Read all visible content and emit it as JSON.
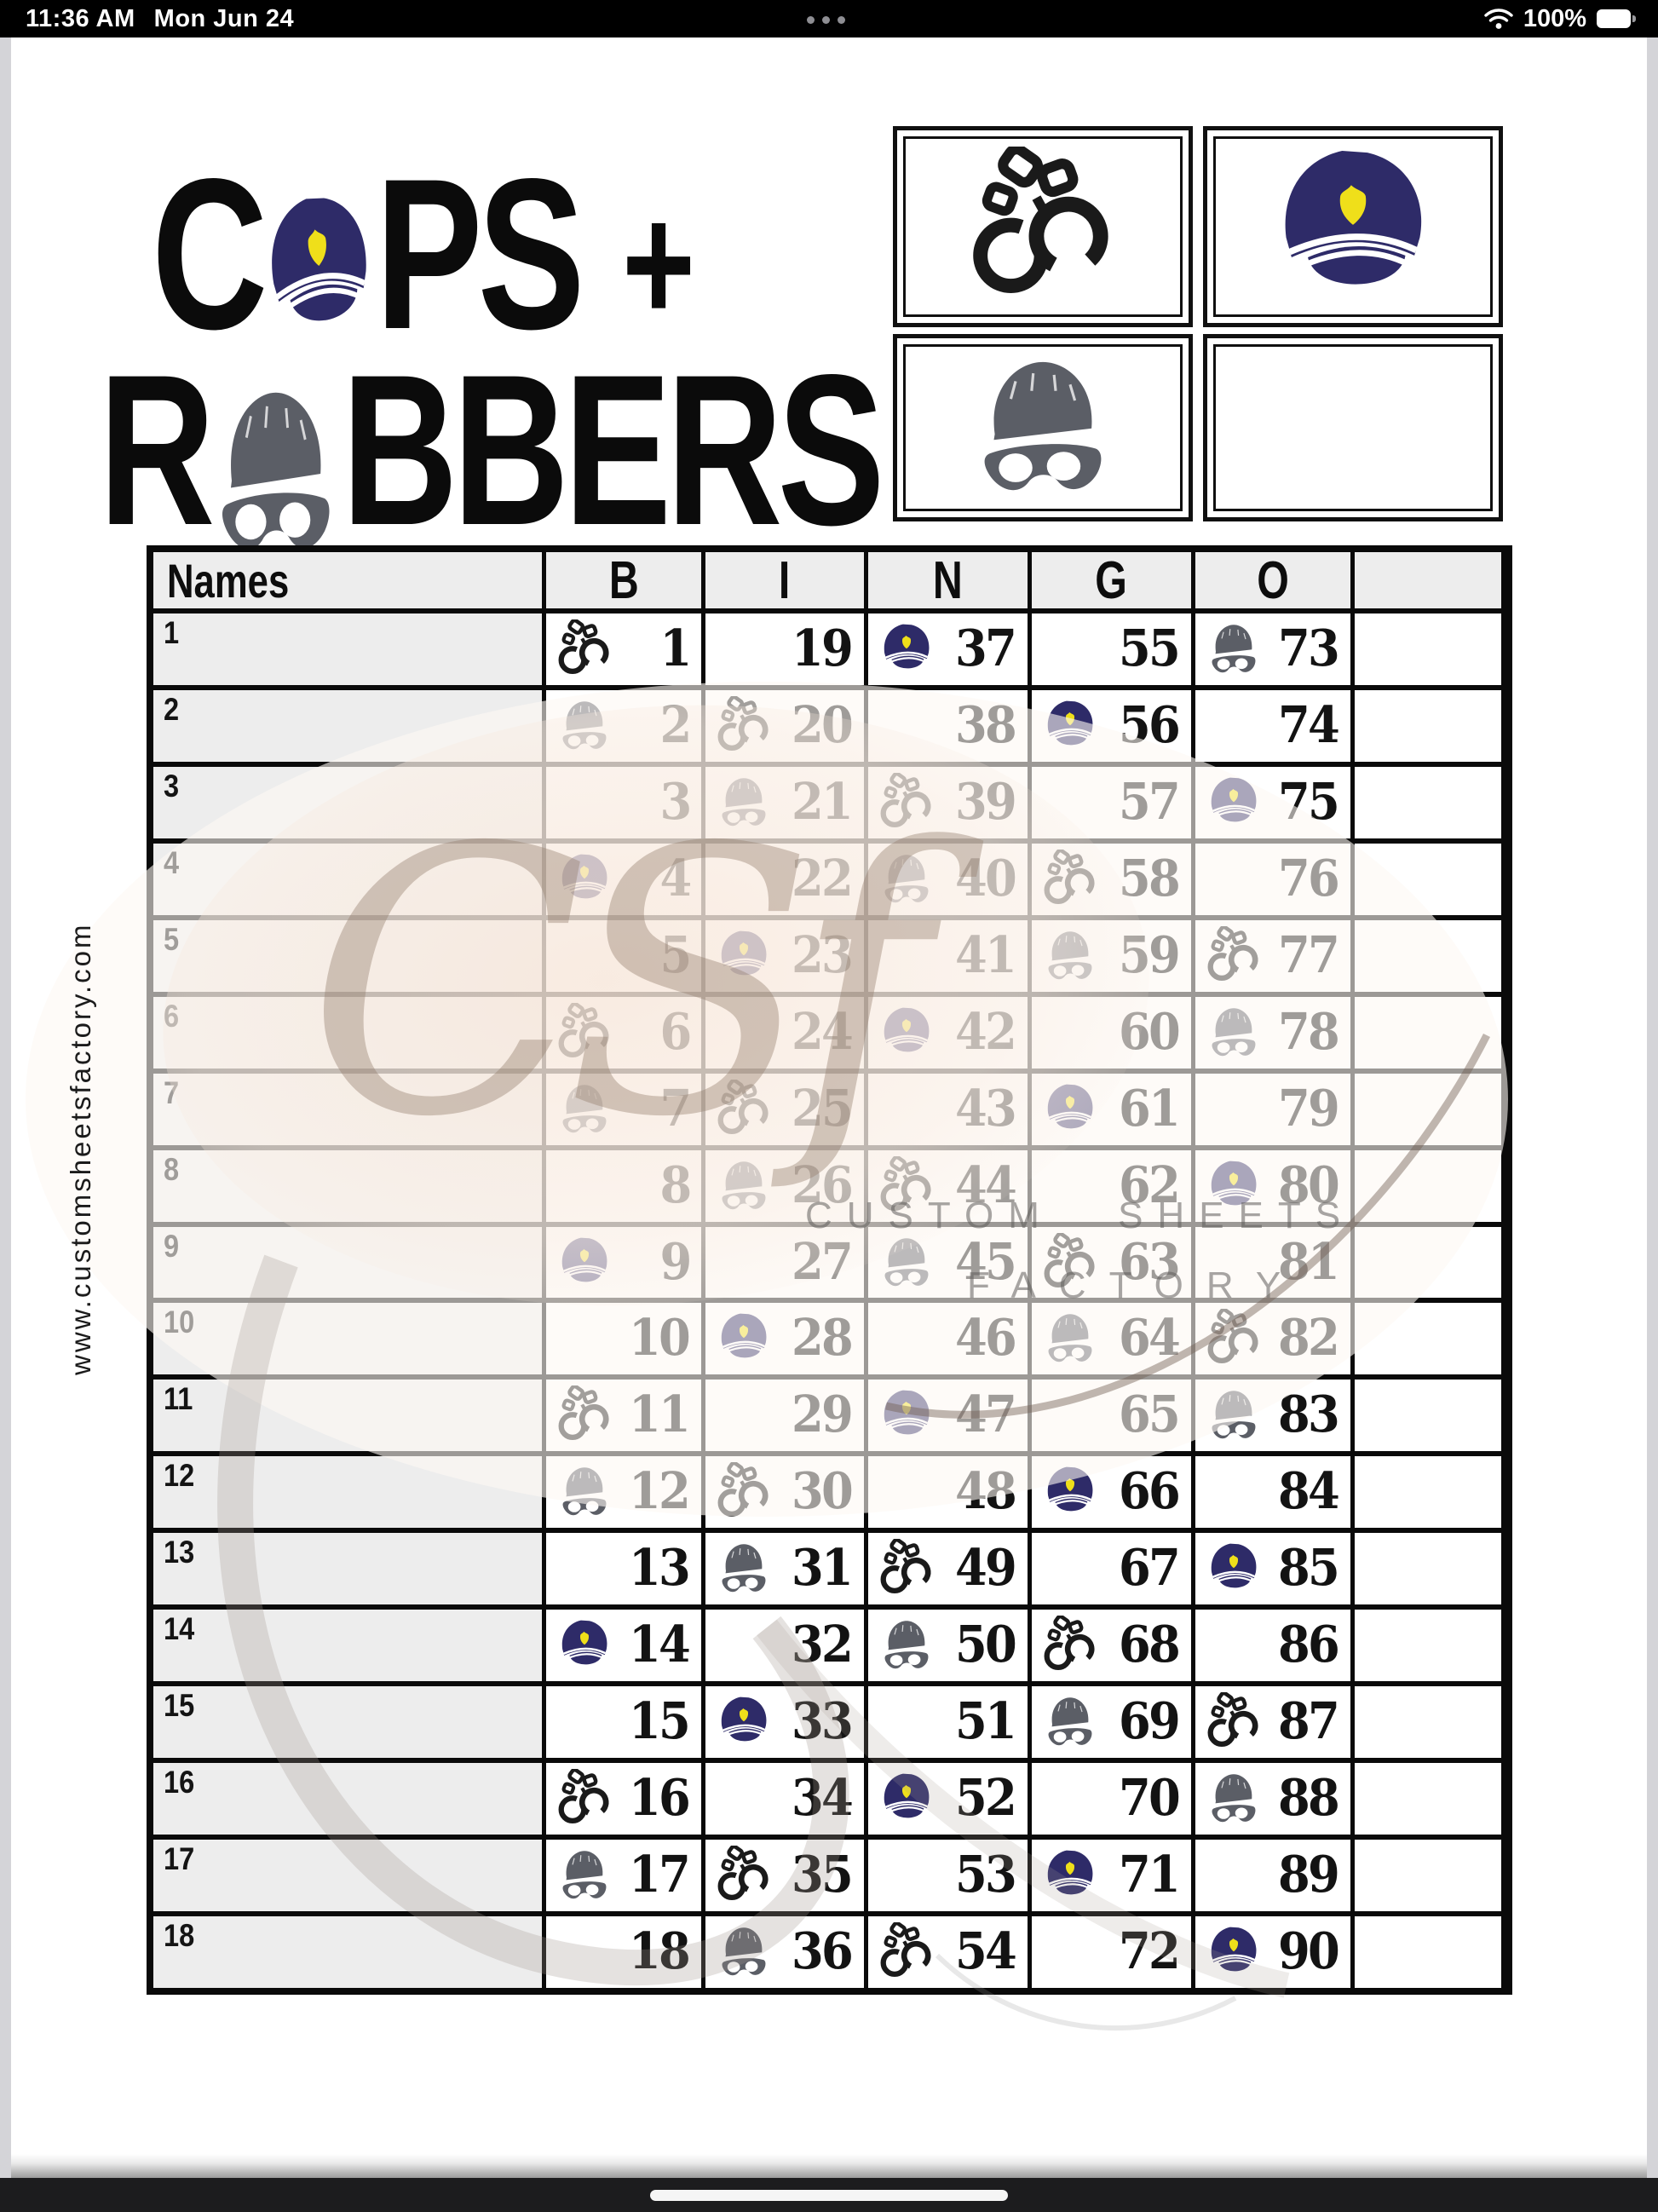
{
  "status_bar": {
    "time": "11:36 AM",
    "date": "Mon Jun 24",
    "battery_percent": "100%"
  },
  "title": {
    "word1_start": "C",
    "word1_end": "PS",
    "plus": "+",
    "word2_start": "R",
    "word2_end": "BBERS"
  },
  "legend": {
    "boxes": [
      {
        "icon": "handcuffs"
      },
      {
        "icon": "police-hat"
      },
      {
        "icon": "robber"
      },
      {
        "icon": "empty"
      }
    ]
  },
  "watermark": {
    "side_url": "www.customsheetsfactory.com",
    "script_text": "CSf",
    "label_line1": "CUSTOM SHEETS",
    "label_line2": "FACTORY"
  },
  "table": {
    "name_header": "Names",
    "letters": [
      "B",
      "I",
      "N",
      "G",
      "O"
    ],
    "rows": [
      {
        "label": "1",
        "cells": [
          {
            "n": 1,
            "icon": "handcuffs"
          },
          {
            "n": 19,
            "icon": null
          },
          {
            "n": 37,
            "icon": "police-hat"
          },
          {
            "n": 55,
            "icon": null
          },
          {
            "n": 73,
            "icon": "robber"
          }
        ]
      },
      {
        "label": "2",
        "cells": [
          {
            "n": 2,
            "icon": "robber"
          },
          {
            "n": 20,
            "icon": "handcuffs"
          },
          {
            "n": 38,
            "icon": null
          },
          {
            "n": 56,
            "icon": "police-hat"
          },
          {
            "n": 74,
            "icon": null
          }
        ]
      },
      {
        "label": "3",
        "cells": [
          {
            "n": 3,
            "icon": null
          },
          {
            "n": 21,
            "icon": "robber"
          },
          {
            "n": 39,
            "icon": "handcuffs"
          },
          {
            "n": 57,
            "icon": null
          },
          {
            "n": 75,
            "icon": "police-hat"
          }
        ]
      },
      {
        "label": "4",
        "cells": [
          {
            "n": 4,
            "icon": "police-hat"
          },
          {
            "n": 22,
            "icon": null
          },
          {
            "n": 40,
            "icon": "robber"
          },
          {
            "n": 58,
            "icon": "handcuffs"
          },
          {
            "n": 76,
            "icon": null
          }
        ]
      },
      {
        "label": "5",
        "cells": [
          {
            "n": 5,
            "icon": null
          },
          {
            "n": 23,
            "icon": "police-hat"
          },
          {
            "n": 41,
            "icon": null
          },
          {
            "n": 59,
            "icon": "robber"
          },
          {
            "n": 77,
            "icon": "handcuffs"
          }
        ]
      },
      {
        "label": "6",
        "cells": [
          {
            "n": 6,
            "icon": "handcuffs"
          },
          {
            "n": 24,
            "icon": null
          },
          {
            "n": 42,
            "icon": "police-hat"
          },
          {
            "n": 60,
            "icon": null
          },
          {
            "n": 78,
            "icon": "robber"
          }
        ]
      },
      {
        "label": "7",
        "cells": [
          {
            "n": 7,
            "icon": "robber"
          },
          {
            "n": 25,
            "icon": "handcuffs"
          },
          {
            "n": 43,
            "icon": null
          },
          {
            "n": 61,
            "icon": "police-hat"
          },
          {
            "n": 79,
            "icon": null
          }
        ]
      },
      {
        "label": "8",
        "cells": [
          {
            "n": 8,
            "icon": null
          },
          {
            "n": 26,
            "icon": "robber"
          },
          {
            "n": 44,
            "icon": "handcuffs"
          },
          {
            "n": 62,
            "icon": null
          },
          {
            "n": 80,
            "icon": "police-hat"
          }
        ]
      },
      {
        "label": "9",
        "cells": [
          {
            "n": 9,
            "icon": "police-hat"
          },
          {
            "n": 27,
            "icon": null
          },
          {
            "n": 45,
            "icon": "robber"
          },
          {
            "n": 63,
            "icon": "handcuffs"
          },
          {
            "n": 81,
            "icon": null
          }
        ]
      },
      {
        "label": "10",
        "cells": [
          {
            "n": 10,
            "icon": null
          },
          {
            "n": 28,
            "icon": "police-hat"
          },
          {
            "n": 46,
            "icon": null
          },
          {
            "n": 64,
            "icon": "robber"
          },
          {
            "n": 82,
            "icon": "handcuffs"
          }
        ]
      },
      {
        "label": "11",
        "cells": [
          {
            "n": 11,
            "icon": "handcuffs"
          },
          {
            "n": 29,
            "icon": null
          },
          {
            "n": 47,
            "icon": "police-hat"
          },
          {
            "n": 65,
            "icon": null
          },
          {
            "n": 83,
            "icon": "robber"
          }
        ]
      },
      {
        "label": "12",
        "cells": [
          {
            "n": 12,
            "icon": "robber"
          },
          {
            "n": 30,
            "icon": "handcuffs"
          },
          {
            "n": 48,
            "icon": null
          },
          {
            "n": 66,
            "icon": "police-hat"
          },
          {
            "n": 84,
            "icon": null
          }
        ]
      },
      {
        "label": "13",
        "cells": [
          {
            "n": 13,
            "icon": null
          },
          {
            "n": 31,
            "icon": "robber"
          },
          {
            "n": 49,
            "icon": "handcuffs"
          },
          {
            "n": 67,
            "icon": null
          },
          {
            "n": 85,
            "icon": "police-hat"
          }
        ]
      },
      {
        "label": "14",
        "cells": [
          {
            "n": 14,
            "icon": "police-hat"
          },
          {
            "n": 32,
            "icon": null
          },
          {
            "n": 50,
            "icon": "robber"
          },
          {
            "n": 68,
            "icon": "handcuffs"
          },
          {
            "n": 86,
            "icon": null
          }
        ]
      },
      {
        "label": "15",
        "cells": [
          {
            "n": 15,
            "icon": null
          },
          {
            "n": 33,
            "icon": "police-hat"
          },
          {
            "n": 51,
            "icon": null
          },
          {
            "n": 69,
            "icon": "robber"
          },
          {
            "n": 87,
            "icon": "handcuffs"
          }
        ]
      },
      {
        "label": "16",
        "cells": [
          {
            "n": 16,
            "icon": "handcuffs"
          },
          {
            "n": 34,
            "icon": null
          },
          {
            "n": 52,
            "icon": "police-hat"
          },
          {
            "n": 70,
            "icon": null
          },
          {
            "n": 88,
            "icon": "robber"
          }
        ]
      },
      {
        "label": "17",
        "cells": [
          {
            "n": 17,
            "icon": "robber"
          },
          {
            "n": 35,
            "icon": "handcuffs"
          },
          {
            "n": 53,
            "icon": null
          },
          {
            "n": 71,
            "icon": "police-hat"
          },
          {
            "n": 89,
            "icon": null
          }
        ]
      },
      {
        "label": "18",
        "cells": [
          {
            "n": 18,
            "icon": null
          },
          {
            "n": 36,
            "icon": "robber"
          },
          {
            "n": 54,
            "icon": "handcuffs"
          },
          {
            "n": 72,
            "icon": null
          },
          {
            "n": 90,
            "icon": "police-hat"
          }
        ]
      }
    ]
  },
  "colors": {
    "police_navy": "#2e2b68",
    "badge_yellow": "#efdf1a",
    "robber_gray": "#5b5e66",
    "handcuffs_black": "#1a1a1a",
    "grid_black": "#0a0a0a",
    "names_bg": "#ededed"
  }
}
